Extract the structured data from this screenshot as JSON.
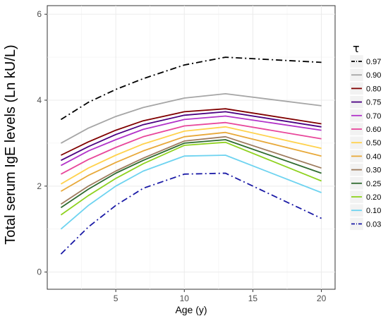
{
  "chart_data": {
    "type": "line",
    "xlabel": "Age (y)",
    "ylabel": "Total serum IgE levels (Ln kU/L)",
    "xlim": [
      0.0,
      21.0
    ],
    "ylim": [
      -0.4,
      6.2
    ],
    "xticks": [
      5,
      10,
      15,
      20
    ],
    "yticks": [
      0,
      2,
      4,
      6
    ],
    "grid": true,
    "legend_title": "τ",
    "legend_position": "right",
    "x": [
      1,
      3,
      5,
      7,
      10,
      13,
      20
    ],
    "series": [
      {
        "name": "0.97",
        "color": "#000000",
        "dash": "dashdot",
        "values": [
          3.55,
          3.95,
          4.25,
          4.5,
          4.82,
          5.0,
          4.88
        ]
      },
      {
        "name": "0.90",
        "color": "#a6a6a6",
        "dash": "solid",
        "values": [
          3.0,
          3.35,
          3.62,
          3.83,
          4.05,
          4.15,
          3.87
        ]
      },
      {
        "name": "0.80",
        "color": "#800000",
        "dash": "solid",
        "values": [
          2.72,
          3.03,
          3.3,
          3.52,
          3.73,
          3.8,
          3.45
        ]
      },
      {
        "name": "0.75",
        "color": "#4b0082",
        "dash": "solid",
        "values": [
          2.6,
          2.92,
          3.2,
          3.43,
          3.65,
          3.73,
          3.38
        ]
      },
      {
        "name": "0.70",
        "color": "#b233c9",
        "dash": "solid",
        "values": [
          2.48,
          2.82,
          3.08,
          3.32,
          3.55,
          3.63,
          3.3
        ]
      },
      {
        "name": "0.60",
        "color": "#e8479b",
        "dash": "solid",
        "values": [
          2.28,
          2.62,
          2.9,
          3.15,
          3.4,
          3.48,
          3.1
        ]
      },
      {
        "name": "0.50",
        "color": "#ffd24d",
        "dash": "solid",
        "values": [
          2.05,
          2.42,
          2.72,
          2.98,
          3.28,
          3.38,
          2.88
        ]
      },
      {
        "name": "0.40",
        "color": "#e8a93a",
        "dash": "solid",
        "values": [
          1.88,
          2.25,
          2.55,
          2.82,
          3.15,
          3.25,
          2.7
        ]
      },
      {
        "name": "0.30",
        "color": "#9e7c5e",
        "dash": "solid",
        "values": [
          1.58,
          2.0,
          2.35,
          2.65,
          3.05,
          3.15,
          2.42
        ]
      },
      {
        "name": "0.25",
        "color": "#2f6b2f",
        "dash": "solid",
        "values": [
          1.5,
          1.93,
          2.3,
          2.6,
          3.0,
          3.08,
          2.3
        ]
      },
      {
        "name": "0.20",
        "color": "#8fd21f",
        "dash": "solid",
        "values": [
          1.33,
          1.78,
          2.18,
          2.52,
          2.95,
          3.02,
          2.12
        ]
      },
      {
        "name": "0.10",
        "color": "#6ed3f0",
        "dash": "solid",
        "values": [
          1.0,
          1.55,
          2.0,
          2.35,
          2.7,
          2.72,
          1.85
        ]
      },
      {
        "name": "0.03",
        "color": "#1a1aa6",
        "dash": "dashdot",
        "values": [
          0.42,
          1.05,
          1.55,
          1.95,
          2.28,
          2.3,
          1.25
        ]
      }
    ]
  }
}
